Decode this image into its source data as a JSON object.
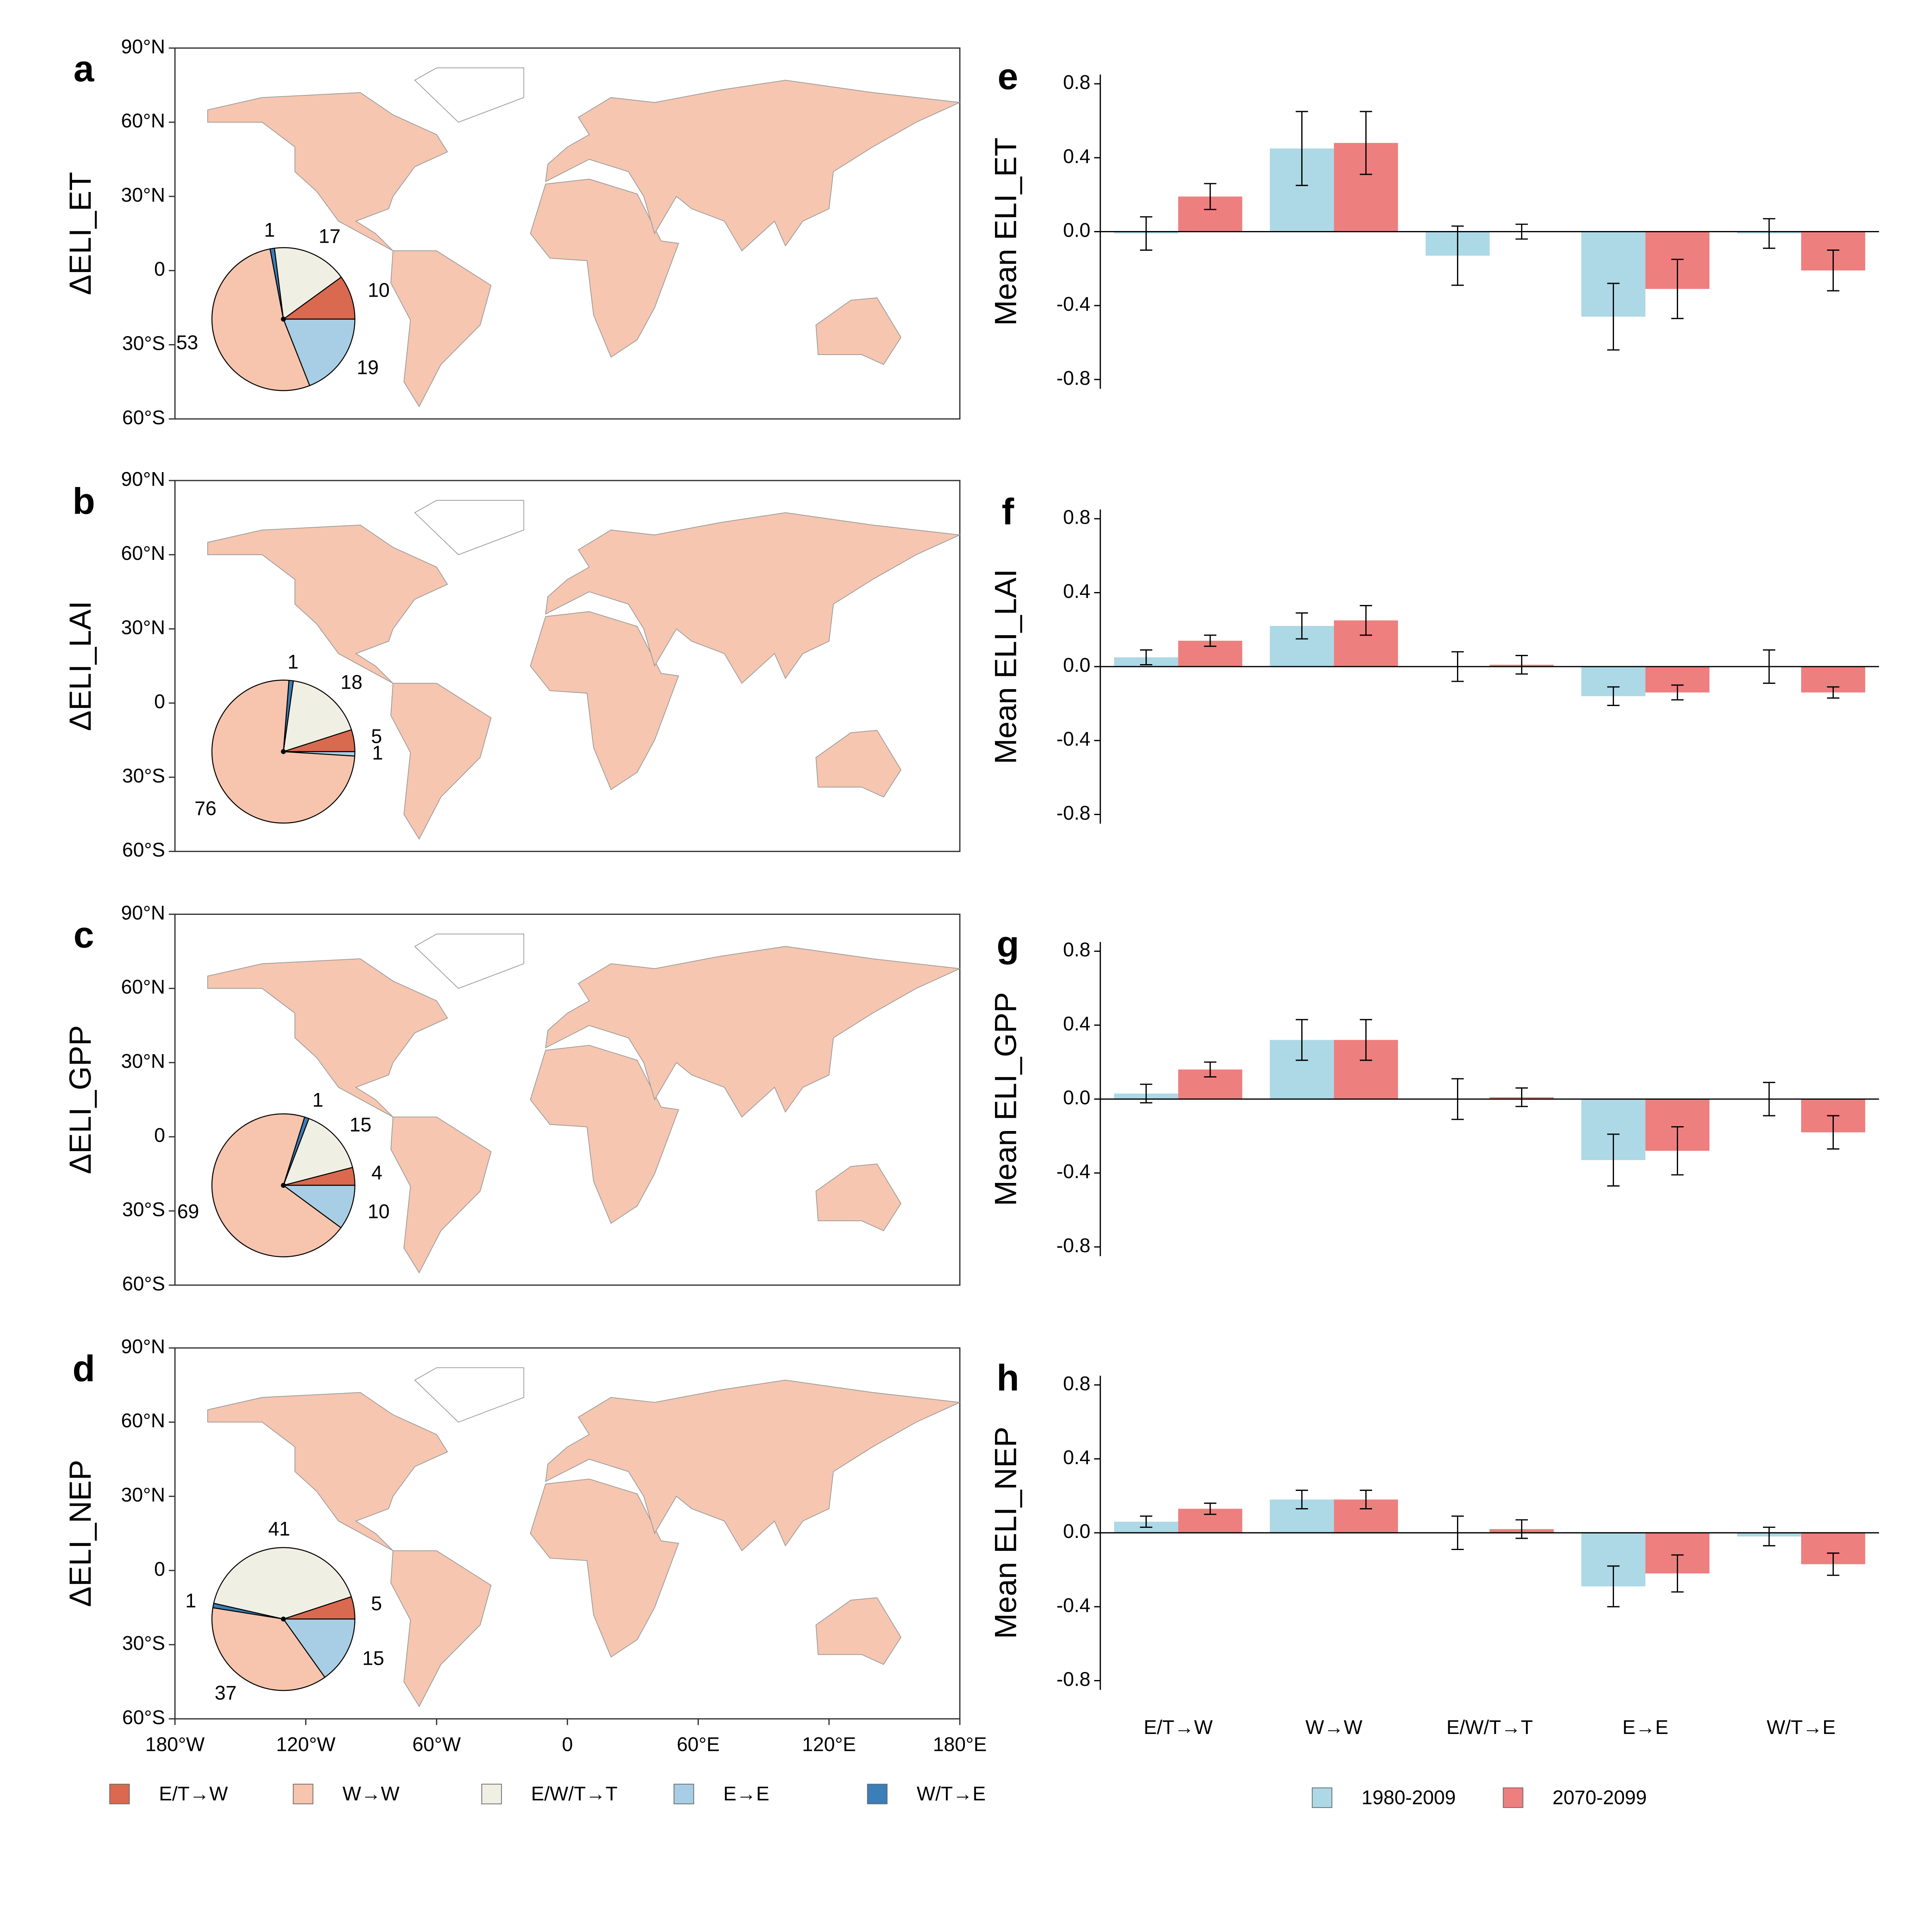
{
  "chart_data": [
    {
      "type": "pie-map",
      "panel": "a",
      "ylabel": "ΔELI_ET",
      "ylim": [
        -60,
        90
      ],
      "yticks": [
        {
          "value": 90,
          "label": "90°N"
        },
        {
          "value": 60,
          "label": "60°N"
        },
        {
          "value": 30,
          "label": "30°N"
        },
        0,
        {
          "value": -30,
          "label": "30°S"
        },
        {
          "value": -60,
          "label": "60°S"
        }
      ],
      "xlim": [
        -180,
        180
      ],
      "categories": [
        "E/T→W",
        "W→W",
        "E/W/T→T",
        "E→E",
        "W/T→E"
      ],
      "colors": [
        "#d9694f",
        "#f7c4ad",
        "#f0efe3",
        "#a7cee4",
        "#3a7fb8"
      ],
      "values": [
        10,
        53,
        17,
        19,
        1
      ]
    },
    {
      "type": "pie-map",
      "panel": "b",
      "ylabel": "ΔELI_LAI",
      "ylim": [
        -60,
        90
      ],
      "yticks": [
        {
          "value": 90,
          "label": "90°N"
        },
        {
          "value": 60,
          "label": "60°N"
        },
        {
          "value": 30,
          "label": "30°N"
        },
        0,
        {
          "value": -30,
          "label": "30°S"
        },
        {
          "value": -60,
          "label": "60°S"
        }
      ],
      "xlim": [
        -180,
        180
      ],
      "colors": [
        "#d9694f",
        "#f7c4ad",
        "#f0efe3",
        "#a7cee4",
        "#3a7fb8"
      ],
      "values": [
        5,
        76,
        18,
        1,
        1
      ]
    },
    {
      "type": "pie-map",
      "panel": "c",
      "ylabel": "ΔELI_GPP",
      "ylim": [
        -60,
        90
      ],
      "yticks": [
        {
          "value": 90,
          "label": "90°N"
        },
        {
          "value": 60,
          "label": "60°N"
        },
        {
          "value": 30,
          "label": "30°N"
        },
        0,
        {
          "value": -30,
          "label": "30°S"
        },
        {
          "value": -60,
          "label": "60°S"
        }
      ],
      "xlim": [
        -180,
        180
      ],
      "colors": [
        "#d9694f",
        "#f7c4ad",
        "#f0efe3",
        "#a7cee4",
        "#3a7fb8"
      ],
      "values": [
        4,
        69,
        15,
        10,
        1
      ]
    },
    {
      "type": "pie-map",
      "panel": "d",
      "ylabel": "ΔELI_NEP",
      "ylim": [
        -60,
        90
      ],
      "yticks": [
        {
          "value": 90,
          "label": "90°N"
        },
        {
          "value": 60,
          "label": "60°N"
        },
        {
          "value": 30,
          "label": "30°N"
        },
        0,
        {
          "value": -30,
          "label": "30°S"
        },
        {
          "value": -60,
          "label": "60°S"
        }
      ],
      "xlim": [
        -180,
        180
      ],
      "xticks": [
        {
          "value": -180,
          "label": "180°W"
        },
        {
          "value": -120,
          "label": "120°W"
        },
        {
          "value": -60,
          "label": "60°W"
        },
        0,
        {
          "value": 60,
          "label": "60°E"
        },
        {
          "value": 120,
          "label": "120°E"
        },
        {
          "value": 180,
          "label": "180°E"
        }
      ],
      "colors": [
        "#d9694f",
        "#f7c4ad",
        "#f0efe3",
        "#a7cee4",
        "#3a7fb8"
      ],
      "values": [
        5,
        37,
        41,
        15,
        1
      ]
    },
    {
      "type": "bar",
      "panel": "e",
      "ylabel": "Mean ELI_ET",
      "ylim": [
        -0.85,
        0.85
      ],
      "yticks": [
        0.8,
        0.4,
        {
          "value": 0,
          "label": "0.0"
        },
        -0.4,
        -0.8
      ],
      "series": [
        {
          "color": "#add8e6",
          "values": [
            -0.01,
            0.45,
            -0.13,
            -0.46,
            -0.01
          ],
          "errors": [
            0.09,
            0.2,
            0.16,
            0.18,
            0.08
          ]
        },
        {
          "color": "#ee7f7f",
          "values": [
            0.19,
            0.48,
            0.0,
            -0.31,
            -0.21
          ],
          "errors": [
            0.07,
            0.17,
            0.04,
            0.16,
            0.11
          ]
        }
      ]
    },
    {
      "type": "bar",
      "panel": "f",
      "ylabel": "Mean ELI_LAI",
      "ylim": [
        -0.85,
        0.85
      ],
      "yticks": [
        0.8,
        0.4,
        {
          "value": 0,
          "label": "0.0"
        },
        -0.4,
        -0.8
      ],
      "series": [
        {
          "color": "#add8e6",
          "values": [
            0.05,
            0.22,
            0.0,
            -0.16,
            0.0
          ],
          "errors": [
            0.04,
            0.07,
            0.08,
            0.05,
            0.09
          ]
        },
        {
          "color": "#ee7f7f",
          "values": [
            0.14,
            0.25,
            0.01,
            -0.14,
            -0.14
          ],
          "errors": [
            0.03,
            0.08,
            0.05,
            0.04,
            0.03
          ]
        }
      ]
    },
    {
      "type": "bar",
      "panel": "g",
      "ylabel": "Mean ELI_GPP",
      "ylim": [
        -0.85,
        0.85
      ],
      "yticks": [
        0.8,
        0.4,
        {
          "value": 0,
          "label": "0.0"
        },
        -0.4,
        -0.8
      ],
      "series": [
        {
          "color": "#add8e6",
          "values": [
            0.03,
            0.32,
            0.0,
            -0.33,
            0.0
          ],
          "errors": [
            0.05,
            0.11,
            0.11,
            0.14,
            0.09
          ]
        },
        {
          "color": "#ee7f7f",
          "values": [
            0.16,
            0.32,
            0.01,
            -0.28,
            -0.18
          ],
          "errors": [
            0.04,
            0.11,
            0.05,
            0.13,
            0.09
          ]
        }
      ]
    },
    {
      "type": "bar",
      "panel": "h",
      "ylabel": "Mean ELI_NEP",
      "ylim": [
        -0.85,
        0.85
      ],
      "yticks": [
        0.8,
        0.4,
        {
          "value": 0,
          "label": "0.0"
        },
        -0.4,
        -0.8
      ],
      "categories": [
        "E/T→W",
        "W→W",
        "E/W/T→T",
        "E→E",
        "W/T→E"
      ],
      "series": [
        {
          "name": "1980-2009",
          "color": "#add8e6",
          "values": [
            0.06,
            0.18,
            0.0,
            -0.29,
            -0.02
          ],
          "errors": [
            0.03,
            0.05,
            0.09,
            0.11,
            0.05
          ]
        },
        {
          "name": "2070-2099",
          "color": "#ee7f7f",
          "values": [
            0.13,
            0.18,
            0.02,
            -0.22,
            -0.17
          ],
          "errors": [
            0.03,
            0.05,
            0.05,
            0.1,
            0.06
          ]
        }
      ]
    }
  ]
}
